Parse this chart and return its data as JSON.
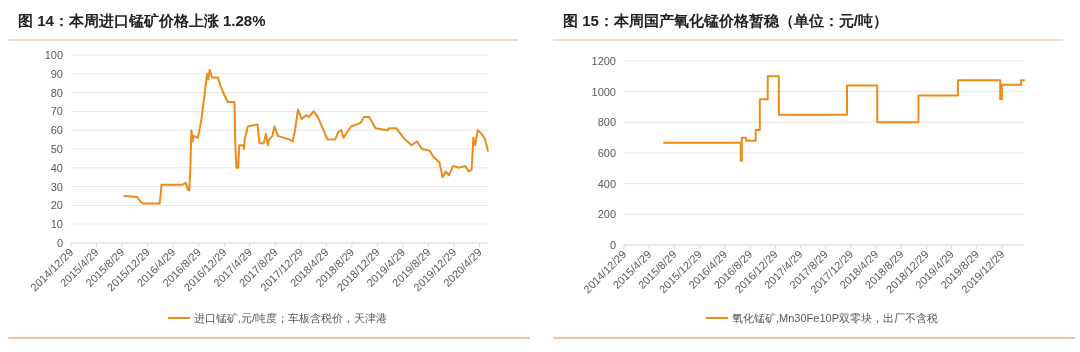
{
  "chart_data": [
    {
      "type": "line",
      "title": "图 14：本周进口锰矿价格上涨 1.28%",
      "xlim": [
        "2014-12-29",
        "2020-06-08"
      ],
      "ylim": [
        0,
        100
      ],
      "yticks": [
        0,
        10,
        20,
        30,
        40,
        50,
        60,
        70,
        80,
        90,
        100
      ],
      "xticks": [
        {
          "value": "2014-12-29",
          "label": "2014/12/29"
        },
        {
          "value": "2015-04-29",
          "label": "2015/4/29"
        },
        {
          "value": "2015-08-29",
          "label": "2015/8/29"
        },
        {
          "value": "2015-12-29",
          "label": "2015/12/29"
        },
        {
          "value": "2016-04-29",
          "label": "2016/4/29"
        },
        {
          "value": "2016-08-29",
          "label": "2016/8/29"
        },
        {
          "value": "2016-12-29",
          "label": "2016/12/29"
        },
        {
          "value": "2017-04-29",
          "label": "2017/4/29"
        },
        {
          "value": "2017-08-29",
          "label": "2017/8/29"
        },
        {
          "value": "2017-12-29",
          "label": "2017/12/29"
        },
        {
          "value": "2018-04-29",
          "label": "2018/4/29"
        },
        {
          "value": "2018-08-29",
          "label": "2018/8/29"
        },
        {
          "value": "2018-12-29",
          "label": "2018/12/29"
        },
        {
          "value": "2019-04-29",
          "label": "2019/4/29"
        },
        {
          "value": "2019-08-29",
          "label": "2019/8/29"
        },
        {
          "value": "2019-12-29",
          "label": "2019/12/29"
        },
        {
          "value": "2020-04-29",
          "label": "2020/4/29"
        }
      ],
      "grid": "y",
      "legend": "bottom",
      "series": [
        {
          "name": "进口锰矿,元/吨度；车板含税价，天津港",
          "color": "#ed8b1a",
          "x": [
            "2015-09-10",
            "2015-11-10",
            "2015-11-25",
            "2015-12-10",
            "2016-02-25",
            "2016-03-05",
            "2016-06-13",
            "2016-06-28",
            "2016-07-10",
            "2016-07-15",
            "2016-07-20",
            "2016-07-25",
            "2016-07-30",
            "2016-08-05",
            "2016-08-25",
            "2016-09-10",
            "2016-09-29",
            "2016-10-08",
            "2016-10-14",
            "2016-10-20",
            "2016-11-01",
            "2016-11-29",
            "2016-12-12",
            "2016-12-28",
            "2017-01-14",
            "2017-02-15",
            "2017-02-20",
            "2017-02-25",
            "2017-03-05",
            "2017-03-10",
            "2017-03-30",
            "2017-04-02",
            "2017-04-05",
            "2017-04-20",
            "2017-06-05",
            "2017-06-15",
            "2017-07-05",
            "2017-07-15",
            "2017-07-25",
            "2017-07-30",
            "2017-08-15",
            "2017-08-25",
            "2017-09-10",
            "2017-11-05",
            "2017-11-20",
            "2017-12-01",
            "2017-12-15",
            "2018-01-01",
            "2018-01-25",
            "2018-02-05",
            "2018-02-28",
            "2018-03-20",
            "2018-05-05",
            "2018-06-10",
            "2018-06-25",
            "2018-07-10",
            "2018-07-20",
            "2018-08-25",
            "2018-09-20",
            "2018-10-10",
            "2018-10-25",
            "2018-11-20",
            "2018-12-20",
            "2019-02-15",
            "2019-02-22",
            "2019-03-29",
            "2019-04-25",
            "2019-05-10",
            "2019-06-10",
            "2019-07-05",
            "2019-07-30",
            "2019-09-05",
            "2019-09-20",
            "2019-10-20",
            "2019-11-05",
            "2019-11-20",
            "2019-12-05",
            "2019-12-25",
            "2020-01-20",
            "2020-02-20",
            "2020-03-08",
            "2020-03-22",
            "2020-03-30",
            "2020-04-08",
            "2020-04-20",
            "2020-05-10",
            "2020-05-25",
            "2020-06-08"
          ],
          "values": [
            25,
            24.5,
            22,
            21,
            21,
            31,
            31,
            32,
            28,
            28,
            40,
            60,
            54,
            57,
            56,
            65,
            82,
            90,
            87,
            92,
            88,
            88,
            83,
            79,
            75,
            75,
            50,
            40,
            40,
            52,
            52,
            50,
            55,
            62,
            63,
            53,
            53,
            58,
            52,
            55,
            57,
            62,
            57,
            55,
            54,
            60,
            71,
            66,
            68,
            67,
            70,
            67,
            55,
            55,
            59,
            60,
            56,
            62,
            63,
            64,
            67,
            67,
            61,
            60,
            61,
            61,
            57,
            55,
            52,
            54,
            50,
            49,
            46,
            43,
            35,
            38,
            36,
            41,
            40,
            41,
            38,
            39,
            56,
            52,
            60,
            58,
            55,
            49
          ]
        }
      ]
    },
    {
      "type": "step",
      "title": "图 15：本周国产氧化锰价格暂稳（单位：元/吨）",
      "xlim": [
        "2014-12-29",
        "2020-04-13"
      ],
      "ylim": [
        0,
        1200
      ],
      "yticks": [
        0,
        200,
        400,
        600,
        800,
        1000,
        1200
      ],
      "xticks": [
        {
          "value": "2014-12-29",
          "label": "2014/12/29"
        },
        {
          "value": "2015-04-29",
          "label": "2015/4/29"
        },
        {
          "value": "2015-08-29",
          "label": "2015/8/29"
        },
        {
          "value": "2015-12-29",
          "label": "2015/12/29"
        },
        {
          "value": "2016-04-29",
          "label": "2016/4/29"
        },
        {
          "value": "2016-08-29",
          "label": "2016/8/29"
        },
        {
          "value": "2016-12-29",
          "label": "2016/12/29"
        },
        {
          "value": "2017-04-29",
          "label": "2017/4/29"
        },
        {
          "value": "2017-08-29",
          "label": "2017/8/29"
        },
        {
          "value": "2017-12-29",
          "label": "2017/12/29"
        },
        {
          "value": "2018-04-29",
          "label": "2018/4/29"
        },
        {
          "value": "2018-08-29",
          "label": "2018/8/29"
        },
        {
          "value": "2018-12-29",
          "label": "2018/12/29"
        },
        {
          "value": "2019-04-29",
          "label": "2019/4/29"
        },
        {
          "value": "2019-08-29",
          "label": "2019/8/29"
        },
        {
          "value": "2019-12-29",
          "label": "2019/12/29"
        }
      ],
      "grid": "y",
      "legend": "bottom",
      "series": [
        {
          "name": "氧化锰矿,Mn30Fe10P双零块，出厂不含税",
          "color": "#ed8b1a",
          "x": [
            "2015-07-10",
            "2016-07-15",
            "2016-07-20",
            "2016-08-10",
            "2016-09-25",
            "2016-10-15",
            "2016-11-22",
            "2017-01-15",
            "2017-12-10",
            "2018-05-05",
            "2018-11-20",
            "2019-05-30",
            "2019-12-20",
            "2019-12-28",
            "2020-03-30",
            "2020-04-13"
          ],
          "values": [
            667,
            550,
            700,
            680,
            750,
            950,
            1100,
            850,
            1040,
            800,
            975,
            1075,
            950,
            1045,
            1075,
            1075
          ]
        }
      ]
    }
  ]
}
